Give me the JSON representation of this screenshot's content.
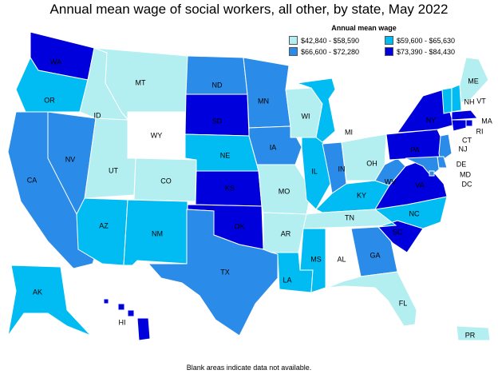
{
  "title": "Annual mean wage of social workers, all other, by state, May 2022",
  "legend": {
    "title": "Annual mean wage",
    "items": [
      {
        "label": "$42,840 - $58,590",
        "color": "#b3eef0"
      },
      {
        "label": "$59,600 - $65,630",
        "color": "#00bcf2"
      },
      {
        "label": "$66,600 - $72,280",
        "color": "#2b8be8"
      },
      {
        "label": "$73,390 - $84,430",
        "color": "#0000dd"
      }
    ]
  },
  "footnote": "Blank areas indicate data not available.",
  "colors": {
    "blank": "#ffffff",
    "border": "#ffffff"
  },
  "states": [
    {
      "abbr": "WA",
      "class": 3
    },
    {
      "abbr": "OR",
      "class": 1
    },
    {
      "abbr": "CA",
      "class": 2
    },
    {
      "abbr": "NV",
      "class": 2
    },
    {
      "abbr": "ID",
      "class": 0
    },
    {
      "abbr": "MT",
      "class": 0
    },
    {
      "abbr": "WY",
      "class": null
    },
    {
      "abbr": "UT",
      "class": 0
    },
    {
      "abbr": "CO",
      "class": 0
    },
    {
      "abbr": "AZ",
      "class": 1
    },
    {
      "abbr": "NM",
      "class": 1
    },
    {
      "abbr": "ND",
      "class": 2
    },
    {
      "abbr": "SD",
      "class": 3
    },
    {
      "abbr": "NE",
      "class": 1
    },
    {
      "abbr": "KS",
      "class": 3
    },
    {
      "abbr": "OK",
      "class": 3
    },
    {
      "abbr": "TX",
      "class": 2
    },
    {
      "abbr": "MN",
      "class": 2
    },
    {
      "abbr": "IA",
      "class": 2
    },
    {
      "abbr": "MO",
      "class": 0
    },
    {
      "abbr": "AR",
      "class": 0
    },
    {
      "abbr": "LA",
      "class": 1
    },
    {
      "abbr": "WI",
      "class": 0
    },
    {
      "abbr": "IL",
      "class": 1
    },
    {
      "abbr": "MI",
      "class": 1
    },
    {
      "abbr": "IN",
      "class": 2
    },
    {
      "abbr": "OH",
      "class": 0
    },
    {
      "abbr": "KY",
      "class": 1
    },
    {
      "abbr": "TN",
      "class": 0
    },
    {
      "abbr": "MS",
      "class": 1
    },
    {
      "abbr": "AL",
      "class": null
    },
    {
      "abbr": "GA",
      "class": 2
    },
    {
      "abbr": "FL",
      "class": 0
    },
    {
      "abbr": "SC",
      "class": 3
    },
    {
      "abbr": "NC",
      "class": 1
    },
    {
      "abbr": "VA",
      "class": 3
    },
    {
      "abbr": "WV",
      "class": 2
    },
    {
      "abbr": "PA",
      "class": 3
    },
    {
      "abbr": "NY",
      "class": 3
    },
    {
      "abbr": "VT",
      "class": 1
    },
    {
      "abbr": "NH",
      "class": 1
    },
    {
      "abbr": "ME",
      "class": 0
    },
    {
      "abbr": "MA",
      "class": 3
    },
    {
      "abbr": "RI",
      "class": 3
    },
    {
      "abbr": "CT",
      "class": 3
    },
    {
      "abbr": "NJ",
      "class": 2
    },
    {
      "abbr": "DE",
      "class": 2
    },
    {
      "abbr": "MD",
      "class": 2
    },
    {
      "abbr": "DC",
      "class": 2
    },
    {
      "abbr": "AK",
      "class": 1
    },
    {
      "abbr": "HI",
      "class": 3
    },
    {
      "abbr": "PR",
      "class": 0
    }
  ]
}
